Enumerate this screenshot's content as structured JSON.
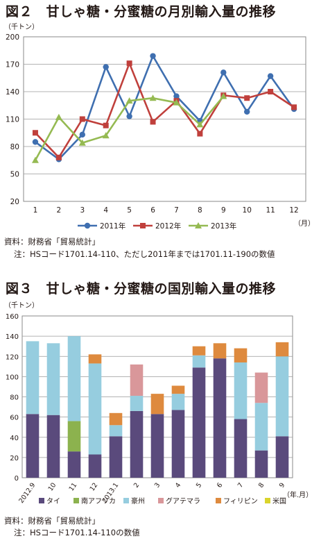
{
  "figure2": {
    "title": "図２　甘しゃ糖・分蜜糖の月別輸入量の推移",
    "source": "資料：財務省「貿易統計」",
    "note": "注：HSコード1701.14-110、ただし2011年までは1701.11-190の数値",
    "yunit": "（千トン）",
    "xunit": "（月）"
  },
  "figure3": {
    "title": "図３　甘しゃ糖・分蜜糖の国別輸入量の推移",
    "source": "資料：財務省「貿易統計」",
    "note": "注：HSコード1701.14-110の数値",
    "yunit": "（千トン）",
    "xunit": "（年.月）"
  },
  "chart_data": [
    {
      "type": "line",
      "categories": [
        "1",
        "2",
        "3",
        "4",
        "5",
        "6",
        "7",
        "8",
        "9",
        "10",
        "11",
        "12"
      ],
      "ylim": [
        20,
        200
      ],
      "yticks": [
        20,
        50,
        80,
        110,
        140,
        170,
        200
      ],
      "grid": true,
      "legend_position": "bottom",
      "series": [
        {
          "name": "2011年",
          "color": "#3F6FB0",
          "marker": "circle",
          "values": [
            85,
            66,
            93,
            167,
            113,
            179,
            135,
            108,
            161,
            118,
            157,
            121
          ]
        },
        {
          "name": "2012年",
          "color": "#C0403C",
          "marker": "square",
          "values": [
            95,
            68,
            110,
            103,
            171,
            107,
            130,
            94,
            136,
            133,
            140,
            123
          ]
        },
        {
          "name": "2013年",
          "color": "#95BA52",
          "marker": "triangle",
          "values": [
            65,
            112,
            84,
            92,
            130,
            133,
            128,
            104,
            135,
            null,
            null,
            null
          ]
        }
      ]
    },
    {
      "type": "bar",
      "stacked": true,
      "categories": [
        "2012.9",
        "10",
        "11",
        "12",
        "2013.1",
        "2",
        "3",
        "4",
        "5",
        "6",
        "7",
        "8",
        "9"
      ],
      "ylim": [
        0,
        160
      ],
      "yticks": [
        0,
        20,
        40,
        60,
        80,
        100,
        120,
        140,
        160
      ],
      "grid": true,
      "legend_position": "bottom",
      "series": [
        {
          "name": "タイ",
          "color": "#5A4A7C",
          "values": [
            63,
            62,
            26,
            23,
            41,
            66,
            63,
            67,
            109,
            118,
            58,
            27,
            41
          ]
        },
        {
          "name": "南アフリカ",
          "color": "#8CB24E",
          "values": [
            0,
            0,
            30,
            0,
            0,
            0,
            0,
            0,
            0,
            0,
            0,
            0,
            0
          ]
        },
        {
          "name": "豪州",
          "color": "#96CDDF",
          "values": [
            72,
            71,
            84,
            90,
            11,
            15,
            0,
            16,
            12,
            0,
            56,
            47,
            79
          ]
        },
        {
          "name": "グアテマラ",
          "color": "#D9979A",
          "values": [
            0,
            0,
            0,
            0,
            0,
            31,
            0,
            0,
            0,
            0,
            0,
            30,
            0
          ]
        },
        {
          "name": "フィリピン",
          "color": "#DE8A3E",
          "values": [
            0,
            0,
            0,
            9,
            12,
            0,
            20,
            8,
            9,
            15,
            14,
            0,
            14
          ]
        },
        {
          "name": "米国",
          "color": "#DAD42C",
          "values": [
            0,
            0,
            0,
            0,
            0,
            0,
            0,
            0,
            0,
            0,
            0,
            0,
            0
          ]
        }
      ]
    }
  ]
}
